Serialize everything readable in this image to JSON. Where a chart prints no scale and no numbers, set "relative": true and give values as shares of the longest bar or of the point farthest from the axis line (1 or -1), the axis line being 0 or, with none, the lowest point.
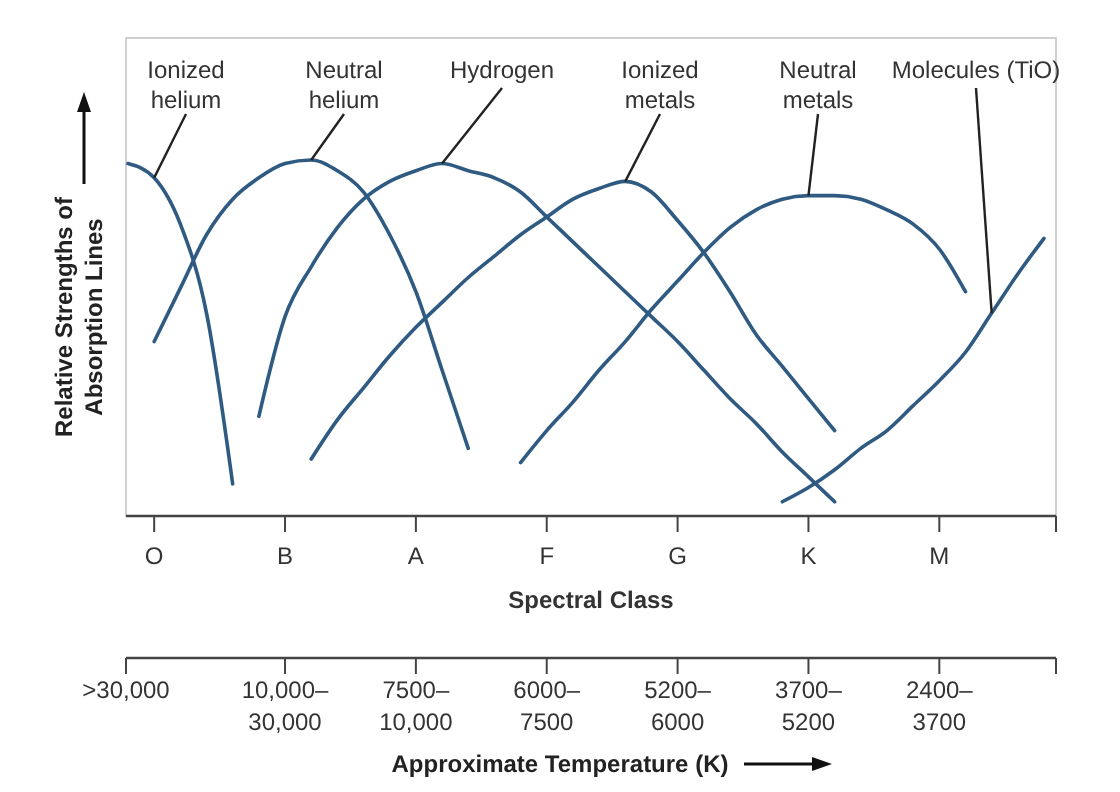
{
  "chart_data": {
    "type": "line",
    "relative": true,
    "xlabel": "Spectral Class",
    "ylabel": "Relative Strengths of\nAbsorption Lines",
    "x2label": "Approximate Temperature (K)",
    "categories": [
      null,
      "O",
      null,
      null,
      null,
      null,
      "B",
      null,
      null,
      null,
      null,
      "A",
      null,
      null,
      null,
      null,
      "F",
      null,
      null,
      null,
      null,
      "G",
      null,
      null,
      null,
      null,
      "K",
      null,
      null,
      null,
      null,
      "M",
      null,
      null,
      null,
      null
    ],
    "annotations": [
      ">30,000",
      "10,000–\n30,000",
      "7500–\n10,000",
      "6000–\n7500",
      "5200–\n6000",
      "3700–\n5200",
      "2400–\n3700"
    ],
    "series": [
      {
        "name": "Ionized\nhelium",
        "color": "#2f5a82",
        "values": [
          0.99,
          0.95,
          0.82,
          0.57,
          0.09,
          null,
          null,
          null,
          null,
          null,
          null,
          null,
          null,
          null,
          null,
          null,
          null,
          null,
          null,
          null,
          null,
          null,
          null,
          null,
          null,
          null,
          null,
          null,
          null,
          null,
          null,
          null,
          null,
          null,
          null,
          null
        ]
      },
      {
        "name": "Neutral\nhelium",
        "color": "#2f5a82",
        "values": [
          null,
          0.49,
          0.64,
          0.79,
          0.89,
          0.95,
          0.99,
          1.0,
          0.97,
          0.91,
          0.79,
          0.63,
          0.41,
          0.19,
          null,
          null,
          null,
          null,
          null,
          null,
          null,
          null,
          null,
          null,
          null,
          null,
          null,
          null,
          null,
          null,
          null,
          null,
          null,
          null,
          null,
          null
        ]
      },
      {
        "name": "Hydrogen",
        "color": "#2f5a82",
        "values": [
          null,
          null,
          null,
          null,
          null,
          0.28,
          0.56,
          0.7,
          0.81,
          0.89,
          0.94,
          0.97,
          0.99,
          0.97,
          0.95,
          0.91,
          0.84,
          0.77,
          0.7,
          0.63,
          0.56,
          0.49,
          0.41,
          0.33,
          0.26,
          0.18,
          0.11,
          0.04,
          null,
          null,
          null,
          null,
          null,
          null,
          null,
          null
        ]
      },
      {
        "name": "Ionized\nmetals",
        "color": "#2f5a82",
        "values": [
          null,
          null,
          null,
          null,
          null,
          null,
          null,
          0.16,
          0.27,
          0.36,
          0.45,
          0.53,
          0.6,
          0.67,
          0.73,
          0.79,
          0.84,
          0.89,
          0.92,
          0.94,
          0.91,
          0.83,
          0.74,
          0.63,
          0.51,
          0.42,
          0.33,
          0.24,
          null,
          null,
          null,
          null,
          null,
          null,
          null,
          null
        ]
      },
      {
        "name": "Neutral\nmetals",
        "color": "#2f5a82",
        "values": [
          null,
          null,
          null,
          null,
          null,
          null,
          null,
          null,
          null,
          null,
          null,
          null,
          null,
          null,
          null,
          0.15,
          0.24,
          0.32,
          0.41,
          0.49,
          0.58,
          0.66,
          0.74,
          0.81,
          0.86,
          0.89,
          0.9,
          0.9,
          0.89,
          0.86,
          0.82,
          0.75,
          0.63,
          null,
          null,
          null
        ]
      },
      {
        "name": "Molecules (TiO)",
        "color": "#2f5a82",
        "values": [
          null,
          null,
          null,
          null,
          null,
          null,
          null,
          null,
          null,
          null,
          null,
          null,
          null,
          null,
          null,
          null,
          null,
          null,
          null,
          null,
          null,
          null,
          null,
          null,
          null,
          0.04,
          0.08,
          0.13,
          0.19,
          0.24,
          0.31,
          0.38,
          0.46,
          0.57,
          0.68,
          0.78
        ]
      }
    ]
  }
}
